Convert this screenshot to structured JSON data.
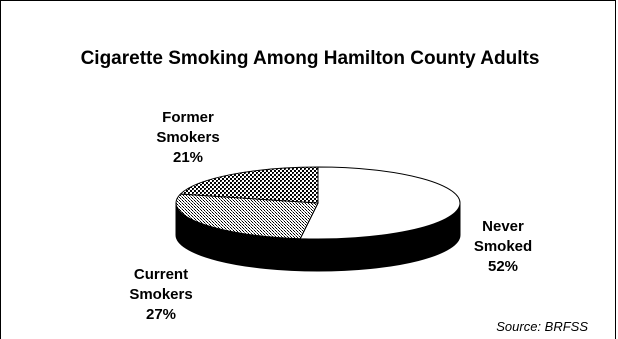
{
  "chart_data": {
    "type": "pie",
    "title": "Cigarette Smoking Among Hamilton County Adults",
    "slices": [
      {
        "label": "Never Smoked",
        "line1": "Never",
        "line2": "Smoked",
        "value": 52,
        "display": "52%",
        "color": "#ffffff"
      },
      {
        "label": "Current Smokers",
        "line1": "Current",
        "line2": "Smokers",
        "value": 27,
        "display": "27%",
        "color": "#9a9a9a"
      },
      {
        "label": "Former Smokers",
        "line1": "Former",
        "line2": "Smokers",
        "value": 21,
        "display": "21%",
        "color": "#3a3a3a"
      }
    ],
    "side_color": "#000000"
  },
  "source": "Source: BRFSS"
}
